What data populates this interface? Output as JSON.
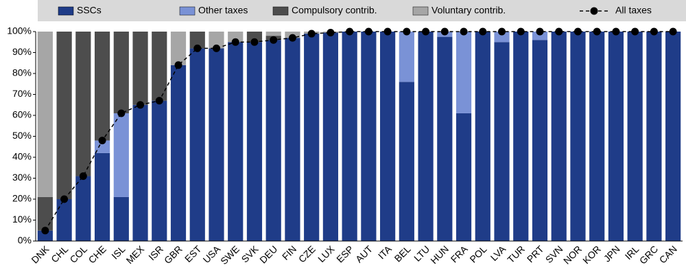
{
  "chart_data": {
    "type": "bar",
    "stacked": true,
    "categories": [
      "DNK",
      "CHL",
      "COL",
      "CHE",
      "ISL",
      "MEX",
      "ISR",
      "GBR",
      "EST",
      "USA",
      "SWE",
      "SVK",
      "DEU",
      "FIN",
      "CZE",
      "LUX",
      "ESP",
      "AUT",
      "ITA",
      "BEL",
      "LTU",
      "HUN",
      "FRA",
      "POL",
      "LVA",
      "TUR",
      "PRT",
      "SVN",
      "NOR",
      "KOR",
      "JPN",
      "IRL",
      "GRC",
      "CAN"
    ],
    "series": [
      {
        "name": "SSCs",
        "type": "bar",
        "color": "#1f3c88",
        "values": [
          5,
          20,
          31,
          42,
          21,
          65,
          67,
          84,
          92,
          92,
          95,
          95,
          96,
          97,
          99,
          99.5,
          100,
          100,
          100,
          76,
          100,
          97.5,
          61,
          100,
          95,
          100,
          96,
          100,
          100,
          100,
          100,
          100,
          100,
          100
        ]
      },
      {
        "name": "Other taxes",
        "type": "bar",
        "color": "#7a92d6",
        "values": [
          0,
          0,
          0,
          6,
          40,
          0,
          0,
          0,
          0,
          0,
          0,
          0,
          0,
          0,
          0,
          0,
          0,
          0,
          0,
          24,
          0,
          2.5,
          39,
          0,
          5,
          0,
          4,
          0,
          0,
          0,
          0,
          0,
          0,
          0
        ]
      },
      {
        "name": "Compulsory contrib.",
        "type": "bar",
        "color": "#4d4d4d",
        "values": [
          16,
          80,
          69,
          52,
          39,
          35,
          33,
          0,
          8,
          0,
          0,
          5,
          2,
          0,
          0,
          0,
          0,
          0,
          0,
          0,
          0,
          0,
          0,
          0,
          0,
          0,
          0,
          0,
          0,
          0,
          0,
          0,
          0,
          0
        ]
      },
      {
        "name": "Voluntary contrib.",
        "type": "bar",
        "color": "#a6a6a6",
        "values": [
          79,
          0,
          0,
          0,
          0,
          0,
          0,
          16,
          0,
          8,
          5,
          0,
          2,
          3,
          1,
          0.5,
          0,
          0,
          0,
          0,
          0,
          0,
          0,
          0,
          0,
          0,
          0,
          0,
          0,
          0,
          0,
          0,
          0,
          0
        ]
      },
      {
        "name": "All taxes",
        "type": "line",
        "color": "#000000",
        "values": [
          5,
          20,
          31,
          48,
          61,
          65,
          67,
          84,
          92,
          92,
          95,
          95,
          96,
          97,
          99,
          99.5,
          100,
          100,
          100,
          100,
          100,
          100,
          100,
          100,
          100,
          100,
          100,
          100,
          100,
          100,
          100,
          100,
          100,
          100
        ]
      }
    ],
    "ylim": [
      0,
      100
    ],
    "yticks": [
      {
        "value": 0,
        "label": "0%"
      },
      {
        "value": 10,
        "label": "10%"
      },
      {
        "value": 20,
        "label": "20%"
      },
      {
        "value": 30,
        "label": "30%"
      },
      {
        "value": 40,
        "label": "40%"
      },
      {
        "value": 50,
        "label": "50%"
      },
      {
        "value": 60,
        "label": "60%"
      },
      {
        "value": 70,
        "label": "70%"
      },
      {
        "value": 80,
        "label": "80%"
      },
      {
        "value": 90,
        "label": "90%"
      },
      {
        "value": 100,
        "label": "100%"
      }
    ],
    "grid": false
  }
}
